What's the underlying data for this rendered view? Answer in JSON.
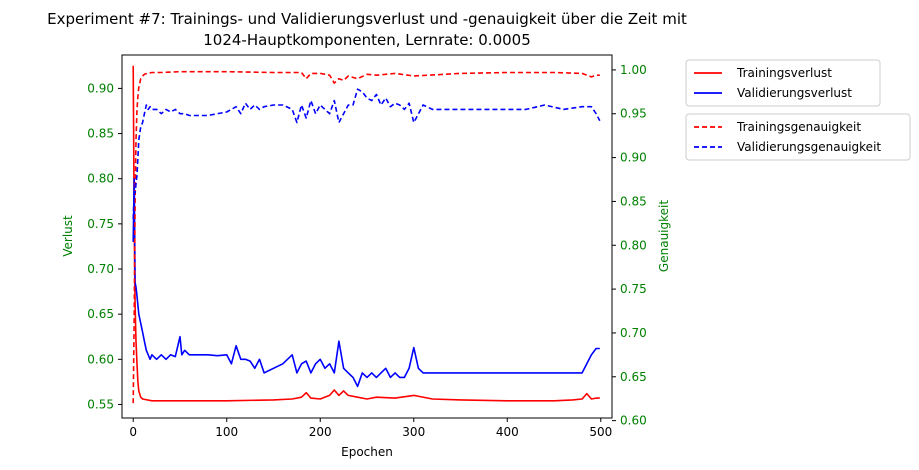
{
  "chart_data": {
    "type": "line",
    "title": "Experiment #7: Trainings- und Validierungsverlust und -genauigkeit über die Zeit mit",
    "subtitle": "1024-Hauptkomponenten, Lernrate: 0.0005",
    "xlabel": "Epochen",
    "ylabel": "Verlust",
    "ylabel_right": "Genauigkeit",
    "xlim": [
      -12,
      512
    ],
    "ylim": [
      0.535,
      0.937
    ],
    "ylim_right": [
      0.603,
      1.017
    ],
    "x_ticks": [
      0,
      100,
      200,
      300,
      400,
      500
    ],
    "y_ticks": [
      0.55,
      0.6,
      0.65,
      0.7,
      0.75,
      0.8,
      0.85,
      0.9
    ],
    "y_ticks_right": [
      0.6,
      0.65,
      0.7,
      0.75,
      0.8,
      0.85,
      0.9,
      0.95,
      1.0
    ],
    "tick_color": "#008000",
    "legend_loss_placement": "outside-top-right",
    "legend_acc_placement": "outside-right-below",
    "series": [
      {
        "name": "Trainingsverlust",
        "axis": "left",
        "style": "solid",
        "color": "#ff0000",
        "x": [
          0,
          1,
          2,
          3,
          4,
          5,
          6,
          8,
          10,
          15,
          20,
          30,
          50,
          100,
          150,
          170,
          180,
          185,
          190,
          200,
          210,
          215,
          220,
          225,
          230,
          240,
          250,
          260,
          280,
          300,
          320,
          350,
          400,
          450,
          470,
          480,
          485,
          490,
          495,
          499
        ],
        "values": [
          0.925,
          0.75,
          0.66,
          0.62,
          0.595,
          0.575,
          0.565,
          0.558,
          0.556,
          0.555,
          0.554,
          0.554,
          0.554,
          0.554,
          0.555,
          0.556,
          0.558,
          0.563,
          0.557,
          0.556,
          0.56,
          0.566,
          0.56,
          0.565,
          0.56,
          0.558,
          0.556,
          0.558,
          0.557,
          0.56,
          0.556,
          0.555,
          0.554,
          0.554,
          0.555,
          0.556,
          0.562,
          0.556,
          0.557,
          0.557
        ]
      },
      {
        "name": "Validierungsverlust",
        "axis": "left",
        "style": "solid",
        "color": "#0000ff",
        "x": [
          0,
          1,
          2,
          3,
          4,
          6,
          8,
          10,
          12,
          14,
          16,
          18,
          20,
          25,
          30,
          35,
          40,
          45,
          50,
          52,
          55,
          60,
          70,
          80,
          90,
          100,
          105,
          110,
          115,
          120,
          125,
          130,
          135,
          140,
          150,
          160,
          170,
          175,
          180,
          185,
          190,
          195,
          200,
          205,
          210,
          215,
          220,
          225,
          230,
          235,
          240,
          245,
          250,
          255,
          260,
          265,
          270,
          275,
          280,
          285,
          290,
          295,
          300,
          305,
          310,
          320,
          340,
          360,
          380,
          400,
          420,
          440,
          460,
          480,
          485,
          490,
          495,
          499
        ],
        "values": [
          0.73,
          0.8,
          0.685,
          0.68,
          0.67,
          0.65,
          0.64,
          0.63,
          0.62,
          0.61,
          0.605,
          0.6,
          0.605,
          0.6,
          0.605,
          0.6,
          0.605,
          0.603,
          0.625,
          0.605,
          0.61,
          0.605,
          0.605,
          0.605,
          0.604,
          0.605,
          0.595,
          0.615,
          0.6,
          0.6,
          0.598,
          0.59,
          0.6,
          0.585,
          0.59,
          0.595,
          0.605,
          0.585,
          0.595,
          0.598,
          0.585,
          0.595,
          0.6,
          0.59,
          0.595,
          0.585,
          0.62,
          0.59,
          0.585,
          0.58,
          0.57,
          0.585,
          0.58,
          0.585,
          0.58,
          0.585,
          0.59,
          0.58,
          0.585,
          0.58,
          0.58,
          0.59,
          0.613,
          0.59,
          0.585,
          0.585,
          0.585,
          0.585,
          0.585,
          0.585,
          0.585,
          0.585,
          0.585,
          0.585,
          0.595,
          0.605,
          0.612,
          0.612
        ]
      },
      {
        "name": "Trainingsgenauigkeit",
        "axis": "right",
        "style": "dashed",
        "color": "#ff0000",
        "x": [
          0,
          1,
          2,
          3,
          4,
          5,
          6,
          7,
          8,
          10,
          12,
          15,
          20,
          30,
          50,
          100,
          150,
          180,
          185,
          190,
          200,
          210,
          215,
          220,
          225,
          230,
          240,
          250,
          260,
          280,
          300,
          350,
          400,
          450,
          480,
          490,
          495,
          499
        ],
        "values": [
          0.62,
          0.72,
          0.85,
          0.92,
          0.955,
          0.97,
          0.98,
          0.985,
          0.99,
          0.993,
          0.995,
          0.996,
          0.997,
          0.997,
          0.998,
          0.998,
          0.997,
          0.997,
          0.99,
          0.996,
          0.996,
          0.994,
          0.985,
          0.99,
          0.988,
          0.993,
          0.99,
          0.995,
          0.994,
          0.996,
          0.993,
          0.996,
          0.997,
          0.997,
          0.996,
          0.992,
          0.994,
          0.994
        ]
      },
      {
        "name": "Validierungsgenauigkeit",
        "axis": "right",
        "style": "dashed",
        "color": "#0000ff",
        "x": [
          0,
          1,
          2,
          3,
          4,
          5,
          6,
          8,
          10,
          12,
          14,
          16,
          18,
          20,
          25,
          30,
          35,
          40,
          45,
          50,
          55,
          60,
          70,
          80,
          90,
          100,
          110,
          115,
          120,
          125,
          130,
          135,
          140,
          150,
          160,
          170,
          175,
          180,
          185,
          190,
          195,
          200,
          205,
          210,
          215,
          220,
          225,
          230,
          235,
          240,
          245,
          250,
          255,
          260,
          265,
          270,
          275,
          280,
          285,
          290,
          295,
          300,
          310,
          320,
          340,
          360,
          380,
          400,
          420,
          440,
          460,
          480,
          490,
          495,
          499
        ],
        "values": [
          0.83,
          0.86,
          0.86,
          0.87,
          0.88,
          0.9,
          0.92,
          0.935,
          0.94,
          0.95,
          0.96,
          0.955,
          0.958,
          0.955,
          0.955,
          0.95,
          0.955,
          0.952,
          0.955,
          0.95,
          0.95,
          0.948,
          0.948,
          0.948,
          0.95,
          0.952,
          0.958,
          0.95,
          0.962,
          0.955,
          0.96,
          0.955,
          0.958,
          0.96,
          0.96,
          0.955,
          0.94,
          0.96,
          0.945,
          0.965,
          0.95,
          0.96,
          0.955,
          0.95,
          0.965,
          0.94,
          0.95,
          0.96,
          0.96,
          0.978,
          0.975,
          0.968,
          0.965,
          0.972,
          0.96,
          0.968,
          0.958,
          0.962,
          0.96,
          0.955,
          0.962,
          0.94,
          0.96,
          0.955,
          0.955,
          0.955,
          0.955,
          0.955,
          0.955,
          0.96,
          0.955,
          0.958,
          0.958,
          0.95,
          0.942
        ]
      }
    ]
  }
}
